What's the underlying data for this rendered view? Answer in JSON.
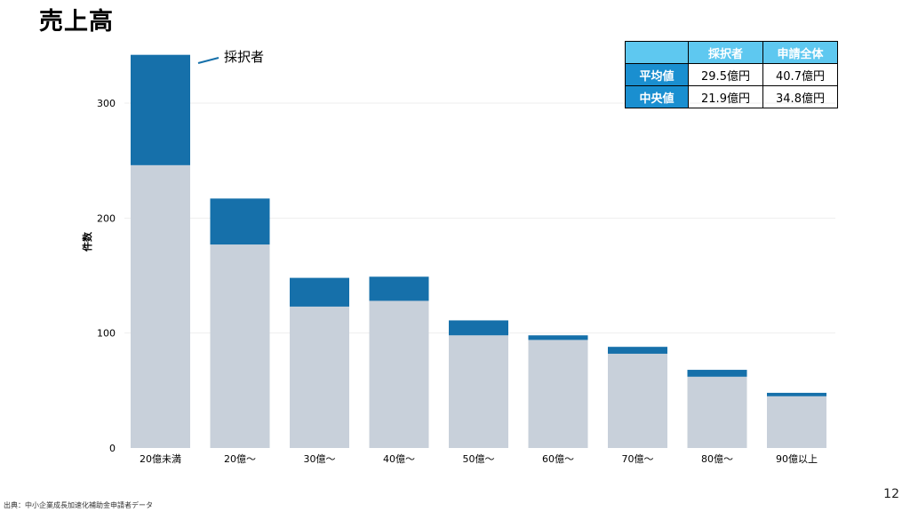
{
  "title": "売上高",
  "page_number": "12",
  "source": "出典：中小企業成長加速化補助金申請者データ",
  "annotation": "採択者",
  "table": {
    "headers": [
      "採択者",
      "申請全体"
    ],
    "rows": [
      {
        "label": "平均値",
        "adopted": "29.5億円",
        "all": "40.7億円"
      },
      {
        "label": "中央値",
        "adopted": "21.9億円",
        "all": "34.8億円"
      }
    ]
  },
  "colors": {
    "adopted": "#1670aa",
    "others": "#c8d0da",
    "table_header": "#5ec8f0",
    "table_rowheader": "#1a8fd0"
  },
  "chart_data": {
    "type": "bar",
    "stacked": true,
    "ylabel": "件数",
    "xlabel": "",
    "ylim": [
      0,
      345
    ],
    "yticks": [
      0,
      100,
      200,
      300
    ],
    "grid": true,
    "categories": [
      "20億未満",
      "20億～",
      "30億～",
      "40億～",
      "50億～",
      "60億～",
      "70億～",
      "80億～",
      "90億以上"
    ],
    "series": [
      {
        "values": [
          246,
          177,
          123,
          128,
          98,
          94,
          82,
          62,
          45
        ]
      },
      {
        "name": "採択者",
        "values": [
          96,
          40,
          25,
          21,
          13,
          4,
          6,
          6,
          3
        ]
      }
    ]
  }
}
